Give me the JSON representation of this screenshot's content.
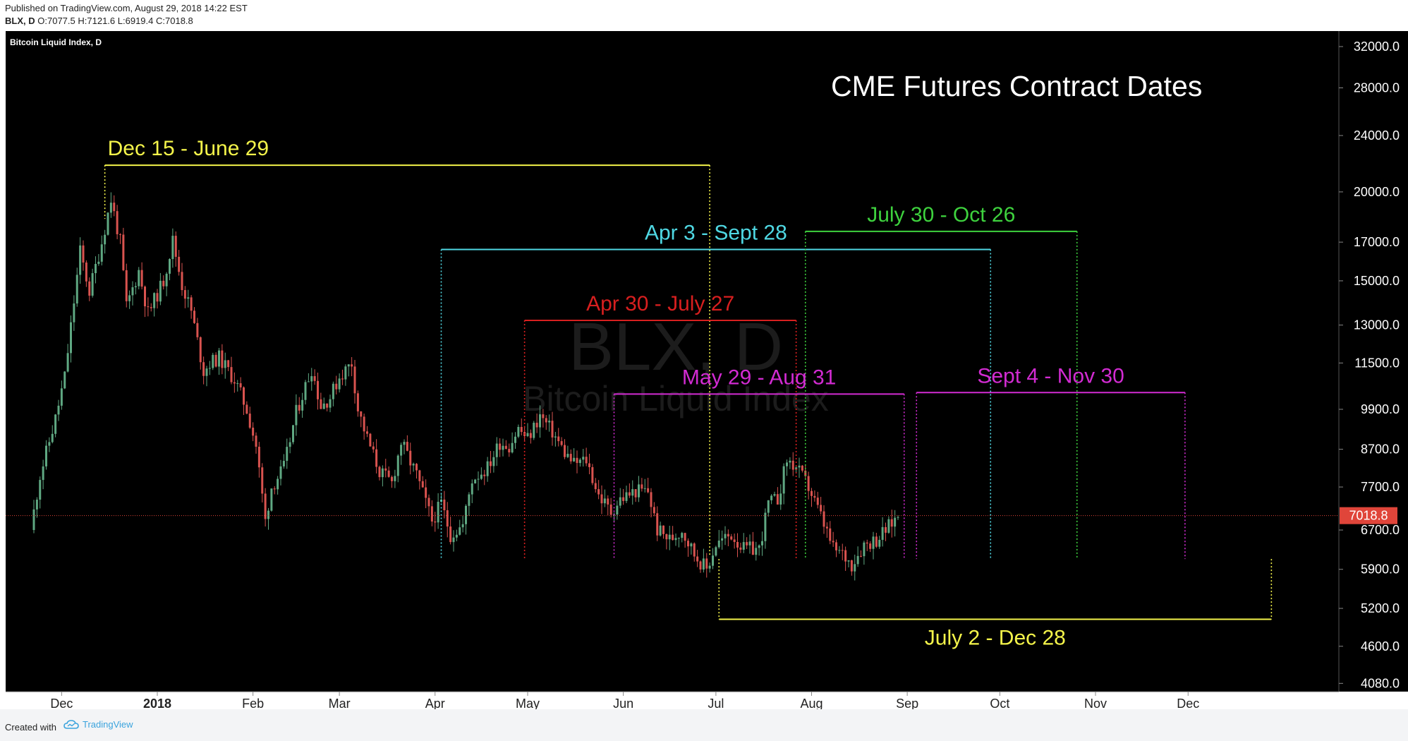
{
  "header": {
    "published": "Published on TradingView.com, August 29, 2018 14:22 EST",
    "symbol": "BLX, D",
    "open_label": "O:",
    "open": "7077.5",
    "high_label": "H:",
    "high": "7121.6",
    "low_label": "L:",
    "low": "6919.4",
    "close_label": "C:",
    "close": "7018.8"
  },
  "footer": {
    "created_with": "Created with",
    "brand": "TradingView"
  },
  "colors": {
    "background": "#000000",
    "up": "#5fa882",
    "down": "#d9534f",
    "yellow": "#f4f44a",
    "cyan": "#4fd8e3",
    "green": "#3ed23e",
    "red": "#d81f1f",
    "magenta": "#d22bd2",
    "price_tag": "#e0453a"
  },
  "chart_data": {
    "type": "candlestick",
    "instrument_title": "Bitcoin Liquid Index, D",
    "watermark": {
      "symbol": "BLX, D",
      "name": "Bitcoin Liquid Index"
    },
    "main_title": "CME Futures Contract Dates",
    "y_scale": "log",
    "y_ticks": [
      "32000.0",
      "28000.0",
      "24000.0",
      "20000.0",
      "17000.0",
      "15000.0",
      "13000.0",
      "11500.0",
      "9900.0",
      "8700.0",
      "7700.0",
      "6700.0",
      "5900.0",
      "5200.0",
      "4600.0",
      "4080.0"
    ],
    "x_ticks": [
      {
        "label": "Dec",
        "date": "2017-12-01",
        "bold": false
      },
      {
        "label": "2018",
        "date": "2018-01-01",
        "bold": true
      },
      {
        "label": "Feb",
        "date": "2018-02-01",
        "bold": false
      },
      {
        "label": "Mar",
        "date": "2018-03-01",
        "bold": false
      },
      {
        "label": "Apr",
        "date": "2018-04-01",
        "bold": false
      },
      {
        "label": "May",
        "date": "2018-05-01",
        "bold": false
      },
      {
        "label": "Jun",
        "date": "2018-06-01",
        "bold": false
      },
      {
        "label": "Jul",
        "date": "2018-07-01",
        "bold": false
      },
      {
        "label": "Aug",
        "date": "2018-08-01",
        "bold": false
      },
      {
        "label": "Sep",
        "date": "2018-09-01",
        "bold": false
      },
      {
        "label": "Oct",
        "date": "2018-10-01",
        "bold": false
      },
      {
        "label": "Nov",
        "date": "2018-11-01",
        "bold": false
      },
      {
        "label": "Dec",
        "date": "2018-12-01",
        "bold": false
      }
    ],
    "last_price": 7018.8,
    "last_price_label": "7018.8",
    "price_path": [
      [
        "2017-11-21",
        6700
      ],
      [
        "2017-11-24",
        8000
      ],
      [
        "2017-11-29",
        9600
      ],
      [
        "2017-12-02",
        11000
      ],
      [
        "2017-12-07",
        16500
      ],
      [
        "2017-12-10",
        14500
      ],
      [
        "2017-12-14",
        17000
      ],
      [
        "2017-12-17",
        19500
      ],
      [
        "2017-12-20",
        17000
      ],
      [
        "2017-12-22",
        13800
      ],
      [
        "2017-12-26",
        15500
      ],
      [
        "2017-12-29",
        13500
      ],
      [
        "2018-01-03",
        15000
      ],
      [
        "2018-01-06",
        17100
      ],
      [
        "2018-01-09",
        14800
      ],
      [
        "2018-01-12",
        13600
      ],
      [
        "2018-01-16",
        11200
      ],
      [
        "2018-01-18",
        11500
      ],
      [
        "2018-01-21",
        11700
      ],
      [
        "2018-01-26",
        10900
      ],
      [
        "2018-01-30",
        9900
      ],
      [
        "2018-02-02",
        8800
      ],
      [
        "2018-02-05",
        6900
      ],
      [
        "2018-02-07",
        7700
      ],
      [
        "2018-02-11",
        8200
      ],
      [
        "2018-02-15",
        9800
      ],
      [
        "2018-02-20",
        11300
      ],
      [
        "2018-02-23",
        10000
      ],
      [
        "2018-02-26",
        10300
      ],
      [
        "2018-03-01",
        11000
      ],
      [
        "2018-03-05",
        11500
      ],
      [
        "2018-03-07",
        9900
      ],
      [
        "2018-03-10",
        9000
      ],
      [
        "2018-03-14",
        8100
      ],
      [
        "2018-03-18",
        7800
      ],
      [
        "2018-03-21",
        8900
      ],
      [
        "2018-03-26",
        8000
      ],
      [
        "2018-03-31",
        6900
      ],
      [
        "2018-04-03",
        7300
      ],
      [
        "2018-04-06",
        6600
      ],
      [
        "2018-04-10",
        6800
      ],
      [
        "2018-04-13",
        7900
      ],
      [
        "2018-04-18",
        8200
      ],
      [
        "2018-04-22",
        8900
      ],
      [
        "2018-04-25",
        8800
      ],
      [
        "2018-04-28",
        9300
      ],
      [
        "2018-05-01",
        9000
      ],
      [
        "2018-05-05",
        9700
      ],
      [
        "2018-05-09",
        9200
      ],
      [
        "2018-05-13",
        8600
      ],
      [
        "2018-05-16",
        8300
      ],
      [
        "2018-05-20",
        8400
      ],
      [
        "2018-05-24",
        7500
      ],
      [
        "2018-05-28",
        7100
      ],
      [
        "2018-05-31",
        7400
      ],
      [
        "2018-06-05",
        7600
      ],
      [
        "2018-06-09",
        7600
      ],
      [
        "2018-06-12",
        6700
      ],
      [
        "2018-06-16",
        6500
      ],
      [
        "2018-06-20",
        6700
      ],
      [
        "2018-06-24",
        6200
      ],
      [
        "2018-06-28",
        5900
      ],
      [
        "2018-07-01",
        6400
      ],
      [
        "2018-07-06",
        6600
      ],
      [
        "2018-07-10",
        6300
      ],
      [
        "2018-07-15",
        6300
      ],
      [
        "2018-07-18",
        7300
      ],
      [
        "2018-07-21",
        7400
      ],
      [
        "2018-07-24",
        8400
      ],
      [
        "2018-07-27",
        8200
      ],
      [
        "2018-07-31",
        7700
      ],
      [
        "2018-08-04",
        7000
      ],
      [
        "2018-08-08",
        6300
      ],
      [
        "2018-08-11",
        6200
      ],
      [
        "2018-08-14",
        6000
      ],
      [
        "2018-08-18",
        6400
      ],
      [
        "2018-08-22",
        6500
      ],
      [
        "2018-08-25",
        6700
      ],
      [
        "2018-08-29",
        7018.8
      ]
    ],
    "spans": [
      {
        "label": "Dec 15 - June 29",
        "color": "yellow",
        "start": "2017-12-15",
        "end": "2018-06-29",
        "top_price": 21800,
        "bottom_price": null,
        "label_below": false
      },
      {
        "label": "Apr 3 - Sept 28",
        "color": "cyan",
        "start": "2018-04-03",
        "end": "2018-09-28",
        "top_price": 16600,
        "bottom_price": 6100,
        "label_below": false
      },
      {
        "label": "July 30 - Oct 26",
        "color": "green",
        "start": "2018-07-30",
        "end": "2018-10-26",
        "top_price": 17600,
        "bottom_price": 6100,
        "label_below": false
      },
      {
        "label": "Apr 30 - July 27",
        "color": "red",
        "start": "2018-04-30",
        "end": "2018-07-27",
        "top_price": 13200,
        "bottom_price": 6100,
        "label_below": false
      },
      {
        "label": "May 29 - Aug 31",
        "color": "magenta",
        "start": "2018-05-29",
        "end": "2018-08-31",
        "top_price": 10400,
        "bottom_price": 6100,
        "label_below": false
      },
      {
        "label": "Sept 4 - Nov 30",
        "color": "magenta",
        "start": "2018-09-04",
        "end": "2018-11-30",
        "top_price": 10450,
        "bottom_price": 6100,
        "label_below": false
      },
      {
        "label": "July 2 - Dec 28",
        "color": "yellow",
        "start": "2018-07-02",
        "end": "2018-12-28",
        "top_price": 6100,
        "bottom_price": 5020,
        "label_below": true
      }
    ]
  }
}
